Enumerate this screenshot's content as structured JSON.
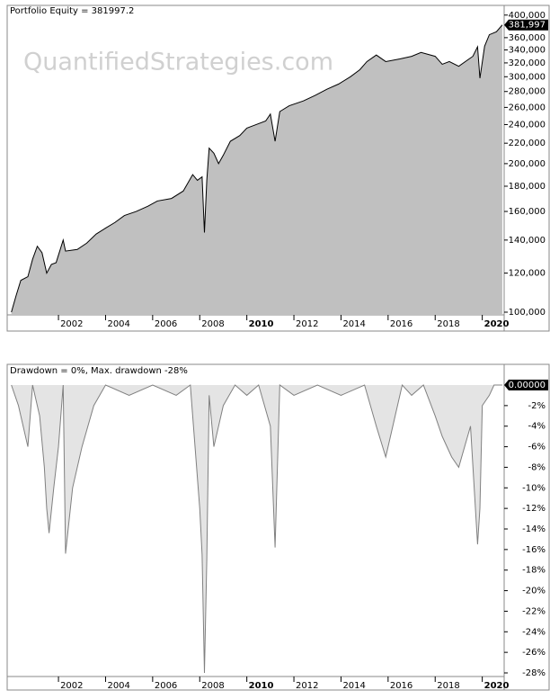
{
  "chart_data": [
    {
      "type": "area",
      "title": "Portfolio Equity = 381997.2",
      "watermark": "QuantifiedStrategies.com",
      "log_scale": true,
      "color": "#c0c0c0",
      "line_color": "#000000",
      "x": [
        2000.0,
        2000.2,
        2000.4,
        2000.7,
        2000.9,
        2001.1,
        2001.3,
        2001.5,
        2001.7,
        2001.9,
        2002.2,
        2002.3,
        2002.8,
        2003.2,
        2003.6,
        2004.0,
        2004.4,
        2004.8,
        2005.3,
        2005.8,
        2006.2,
        2006.8,
        2007.3,
        2007.7,
        2007.9,
        2008.1,
        2008.2,
        2008.3,
        2008.4,
        2008.6,
        2008.8,
        2009.0,
        2009.3,
        2009.7,
        2010.0,
        2010.4,
        2010.8,
        2011.0,
        2011.2,
        2011.4,
        2011.8,
        2012.4,
        2012.9,
        2013.4,
        2013.9,
        2014.4,
        2014.8,
        2015.1,
        2015.5,
        2015.9,
        2016.5,
        2017.0,
        2017.4,
        2018.0,
        2018.3,
        2018.6,
        2019.0,
        2019.4,
        2019.6,
        2019.8,
        2019.9,
        2020.1,
        2020.3,
        2020.6,
        2020.85
      ],
      "values": [
        100000,
        108000,
        116000,
        118000,
        128000,
        136000,
        132000,
        120000,
        125000,
        126000,
        140000,
        133000,
        134000,
        138000,
        144000,
        148000,
        152000,
        157000,
        160000,
        164000,
        168000,
        170000,
        176000,
        190000,
        185000,
        188000,
        145000,
        185000,
        215000,
        210000,
        200000,
        208000,
        222000,
        228000,
        236000,
        240000,
        244000,
        252000,
        222000,
        255000,
        262000,
        268000,
        275000,
        283000,
        290000,
        300000,
        310000,
        322000,
        332000,
        322000,
        326000,
        330000,
        336000,
        330000,
        318000,
        322000,
        315000,
        325000,
        330000,
        345000,
        298000,
        346000,
        365000,
        370000,
        381997.2
      ],
      "value_labels": [
        null,
        null,
        null,
        null,
        null,
        null,
        null,
        null,
        null,
        null,
        null,
        null,
        null,
        null,
        null,
        null,
        null,
        null,
        null,
        null,
        null,
        null,
        null,
        null,
        null,
        null,
        null,
        null,
        null,
        null,
        null,
        null,
        null,
        null,
        null,
        null,
        null,
        null,
        null,
        null,
        null,
        null,
        null,
        null,
        null,
        null,
        null,
        null,
        null,
        null,
        null,
        null,
        null,
        null,
        null,
        null,
        null,
        null,
        null,
        null,
        null,
        null,
        null,
        null,
        "381,997"
      ],
      "xlim": [
        1999.86,
        2020.93
      ],
      "xticks": [
        2002,
        2004,
        2006,
        2008,
        2010,
        2012,
        2014,
        2016,
        2018,
        2020
      ],
      "ylim": [
        98750,
        415000
      ],
      "yticks": [
        {
          "value": 100000,
          "label": "100,000"
        },
        {
          "value": 120000,
          "label": "120,000"
        },
        {
          "value": 140000,
          "label": "140,000"
        },
        {
          "value": 160000,
          "label": "160,000"
        },
        {
          "value": 180000,
          "label": "180,000"
        },
        {
          "value": 200000,
          "label": "200,000"
        },
        {
          "value": 220000,
          "label": "220,000"
        },
        {
          "value": 240000,
          "label": "240,000"
        },
        {
          "value": 260000,
          "label": "260,000"
        },
        {
          "value": 280000,
          "label": "280,000"
        },
        {
          "value": 300000,
          "label": "300,000"
        },
        {
          "value": 320000,
          "label": "320,000"
        },
        {
          "value": 340000,
          "label": "340,000"
        },
        {
          "value": 360000,
          "label": "360,000"
        },
        {
          "value": 400000,
          "label": "400,000"
        }
      ]
    },
    {
      "type": "area",
      "title": "Drawdown = 0%, Max. drawdown -28%",
      "log_scale": false,
      "color": "#e4e4e4",
      "line_color": "#808080",
      "x": [
        2000.0,
        2000.3,
        2000.5,
        2000.7,
        2000.9,
        2001.2,
        2001.4,
        2001.5,
        2001.6,
        2001.8,
        2002.0,
        2002.2,
        2002.3,
        2002.6,
        2003.0,
        2003.5,
        2004.0,
        2005.0,
        2006.0,
        2007.0,
        2007.6,
        2007.8,
        2008.0,
        2008.1,
        2008.2,
        2008.3,
        2008.4,
        2008.6,
        2009.0,
        2009.5,
        2010.0,
        2010.5,
        2011.0,
        2011.2,
        2011.4,
        2012.0,
        2013.0,
        2014.0,
        2015.0,
        2015.5,
        2015.9,
        2016.3,
        2016.6,
        2017.0,
        2017.5,
        2018.0,
        2018.3,
        2018.7,
        2019.0,
        2019.5,
        2019.8,
        2019.9,
        2020.0,
        2020.3,
        2020.5,
        2020.85
      ],
      "values": [
        0,
        -2,
        -4,
        -6,
        0,
        -3,
        -8,
        -12,
        -14.4,
        -10,
        -6,
        0,
        -16.4,
        -10,
        -6,
        -2,
        0,
        -1,
        0,
        -1,
        0,
        -6,
        -12,
        -16.5,
        -28,
        -17,
        -1,
        -6,
        -2,
        0,
        -1,
        0,
        -4,
        -15.8,
        0,
        -1,
        0,
        -1,
        0,
        -4,
        -7,
        -3,
        0,
        -1,
        0,
        -3,
        -5,
        -7,
        -8,
        -4,
        -15.5,
        -12,
        -2,
        -1,
        0,
        0
      ],
      "value_labels": [
        null,
        null,
        null,
        null,
        null,
        null,
        null,
        null,
        null,
        null,
        null,
        null,
        null,
        null,
        null,
        null,
        null,
        null,
        null,
        null,
        null,
        null,
        null,
        null,
        null,
        null,
        null,
        null,
        null,
        null,
        null,
        null,
        null,
        null,
        null,
        null,
        null,
        null,
        null,
        null,
        null,
        null,
        null,
        null,
        null,
        null,
        null,
        null,
        null,
        null,
        null,
        null,
        null,
        null,
        null,
        "0.00000"
      ],
      "xlim": [
        1999.86,
        2020.93
      ],
      "xticks": [
        2002,
        2004,
        2006,
        2008,
        2010,
        2012,
        2014,
        2016,
        2018,
        2020
      ],
      "ylim": [
        -28.35,
        0.875
      ],
      "yticks": [
        {
          "value": -2,
          "label": "-2%"
        },
        {
          "value": -4,
          "label": "-4%"
        },
        {
          "value": -6,
          "label": "-6%"
        },
        {
          "value": -8,
          "label": "-8%"
        },
        {
          "value": -10,
          "label": "-10%"
        },
        {
          "value": -12,
          "label": "-12%"
        },
        {
          "value": -14,
          "label": "-14%"
        },
        {
          "value": -16,
          "label": "-16%"
        },
        {
          "value": -18,
          "label": "-18%"
        },
        {
          "value": -20,
          "label": "-20%"
        },
        {
          "value": -22,
          "label": "-22%"
        },
        {
          "value": -24,
          "label": "-24%"
        },
        {
          "value": -26,
          "label": "-26%"
        },
        {
          "value": -28,
          "label": "-28%"
        }
      ]
    }
  ]
}
